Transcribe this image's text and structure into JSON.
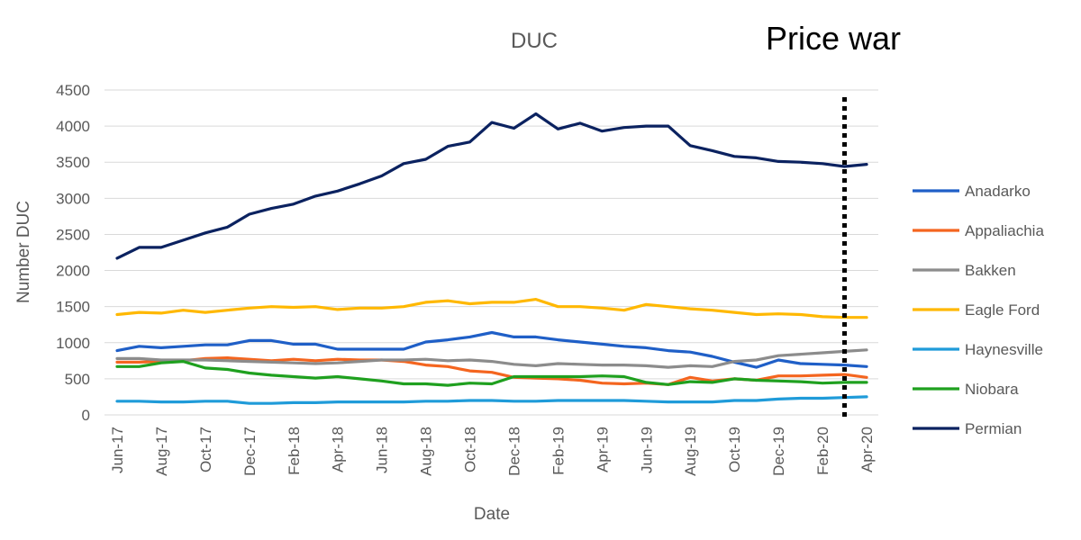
{
  "chart_data": {
    "type": "line",
    "title": "DUC",
    "annotation": "Price war",
    "xlabel": "Date",
    "ylabel": "Number DUC",
    "ylim": [
      0,
      4500
    ],
    "yticks": [
      0,
      500,
      1000,
      1500,
      2000,
      2500,
      3000,
      3500,
      4000,
      4500
    ],
    "x": [
      "Jun-17",
      "Jul-17",
      "Aug-17",
      "Sep-17",
      "Oct-17",
      "Nov-17",
      "Dec-17",
      "Jan-18",
      "Feb-18",
      "Mar-18",
      "Apr-18",
      "May-18",
      "Jun-18",
      "Jul-18",
      "Aug-18",
      "Sep-18",
      "Oct-18",
      "Nov-18",
      "Dec-18",
      "Jan-19",
      "Feb-19",
      "Mar-19",
      "Apr-19",
      "May-19",
      "Jun-19",
      "Jul-19",
      "Aug-19",
      "Sep-19",
      "Oct-19",
      "Nov-19",
      "Dec-19",
      "Jan-20",
      "Feb-20",
      "Mar-20",
      "Apr-20"
    ],
    "xtick_labels": [
      "Jun-17",
      "Aug-17",
      "Oct-17",
      "Dec-17",
      "Feb-18",
      "Apr-18",
      "Jun-18",
      "Aug-18",
      "Oct-18",
      "Dec-18",
      "Feb-19",
      "Apr-19",
      "Jun-19",
      "Aug-19",
      "Oct-19",
      "Dec-19",
      "Feb-20",
      "Apr-20"
    ],
    "marker_line": {
      "x": "Mar-20",
      "style": "dotted",
      "color": "#000000"
    },
    "grid": "horizontal",
    "legend_position": "right",
    "series": [
      {
        "name": "Anadarko",
        "color": "#1F5FC7",
        "values": [
          890,
          950,
          930,
          950,
          970,
          970,
          1030,
          1030,
          980,
          980,
          910,
          910,
          910,
          910,
          1010,
          1040,
          1080,
          1140,
          1080,
          1080,
          1040,
          1010,
          980,
          950,
          930,
          890,
          870,
          810,
          730,
          660,
          760,
          710,
          700,
          690,
          670
        ]
      },
      {
        "name": "Appaliachia",
        "color": "#F4651F",
        "values": [
          730,
          730,
          740,
          750,
          780,
          790,
          770,
          750,
          770,
          750,
          770,
          760,
          760,
          740,
          690,
          670,
          610,
          590,
          520,
          510,
          500,
          480,
          440,
          430,
          440,
          420,
          520,
          470,
          500,
          480,
          540,
          540,
          550,
          560,
          520
        ]
      },
      {
        "name": "Bakken",
        "color": "#8C8C8C",
        "values": [
          780,
          780,
          760,
          760,
          760,
          750,
          740,
          730,
          720,
          710,
          720,
          740,
          760,
          760,
          770,
          750,
          760,
          740,
          700,
          680,
          710,
          700,
          690,
          690,
          680,
          660,
          680,
          670,
          740,
          760,
          820,
          840,
          860,
          880,
          900
        ]
      },
      {
        "name": "Eagle Ford",
        "color": "#FFB800",
        "values": [
          1390,
          1420,
          1410,
          1450,
          1420,
          1450,
          1480,
          1500,
          1490,
          1500,
          1460,
          1480,
          1480,
          1500,
          1560,
          1580,
          1540,
          1560,
          1560,
          1600,
          1500,
          1500,
          1480,
          1450,
          1530,
          1500,
          1470,
          1450,
          1420,
          1390,
          1400,
          1390,
          1360,
          1350,
          1350
        ]
      },
      {
        "name": "Haynesville",
        "color": "#1F9BD9",
        "values": [
          190,
          190,
          180,
          180,
          190,
          190,
          160,
          160,
          170,
          170,
          180,
          180,
          180,
          180,
          190,
          190,
          200,
          200,
          190,
          190,
          200,
          200,
          200,
          200,
          190,
          180,
          180,
          180,
          200,
          200,
          220,
          230,
          230,
          240,
          250
        ]
      },
      {
        "name": "Niobara",
        "color": "#1FA01F",
        "values": [
          670,
          670,
          720,
          740,
          650,
          630,
          580,
          550,
          530,
          510,
          530,
          500,
          470,
          430,
          430,
          410,
          440,
          430,
          530,
          530,
          530,
          530,
          540,
          530,
          450,
          420,
          460,
          450,
          500,
          480,
          470,
          460,
          440,
          450,
          450
        ]
      },
      {
        "name": "Permian",
        "color": "#0B2260",
        "values": [
          2170,
          2320,
          2320,
          2420,
          2520,
          2600,
          2780,
          2860,
          2920,
          3030,
          3100,
          3200,
          3310,
          3480,
          3540,
          3720,
          3780,
          4050,
          3970,
          4170,
          3960,
          4040,
          3930,
          3980,
          4000,
          4000,
          3730,
          3660,
          3580,
          3560,
          3510,
          3500,
          3480,
          3440,
          3470
        ]
      }
    ]
  }
}
